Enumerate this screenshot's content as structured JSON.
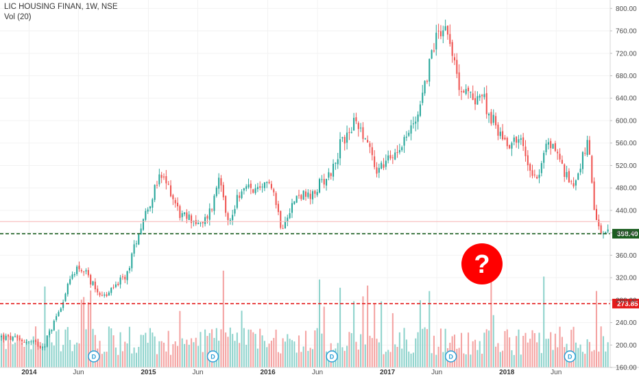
{
  "header": {
    "title": "LIC HOUSING FINAN, 1W, NSE",
    "volume_label": "Vol (20)"
  },
  "colors": {
    "up": "#26a69a",
    "down": "#ef5350",
    "vol_up": "#8ed3cc",
    "vol_down": "#f4a3a2",
    "support_line": "#1b5e20",
    "volume_line": "#e31b1b",
    "pivot_line": "#f8b4b4",
    "question_fill": "#ff0000",
    "marker_border": "#2a9fd6",
    "grid": "#f2f2f2"
  },
  "price_tags": {
    "support": "398.40",
    "volume_level": "273.85"
  },
  "question_mark": "?",
  "dividend_marker": "D",
  "chart_data": {
    "type": "candlestick",
    "title": "LIC HOUSING FINAN, 1W, NSE",
    "ylim": [
      143,
      815
    ],
    "y_ticks": [
      "160.00",
      "200.00",
      "240.00",
      "280.00",
      "320.00",
      "360.00",
      "400.00",
      "440.00",
      "480.00",
      "520.00",
      "560.00",
      "600.00",
      "640.00",
      "680.00",
      "720.00",
      "760.00",
      "800.00"
    ],
    "x_ticks": [
      "2014",
      "Jun",
      "2015",
      "Jun",
      "2016",
      "Jun",
      "2017",
      "Jun",
      "2018",
      "Jun"
    ],
    "x_ticks_major": [
      "2014",
      "2015",
      "2016",
      "2017",
      "2018"
    ],
    "grid": true,
    "price_path": [
      [
        "2013-10-04",
        215
      ],
      [
        "2013-11-22",
        210
      ],
      [
        "2014-01-03",
        205
      ],
      [
        "2014-02-14",
        198
      ],
      [
        "2014-03-14",
        235
      ],
      [
        "2014-04-18",
        285
      ],
      [
        "2014-05-16",
        330
      ],
      [
        "2014-05-30",
        340
      ],
      [
        "2014-06-20",
        330
      ],
      [
        "2014-07-25",
        300
      ],
      [
        "2014-08-22",
        285
      ],
      [
        "2014-09-26",
        310
      ],
      [
        "2014-10-24",
        320
      ],
      [
        "2014-11-21",
        380
      ],
      [
        "2014-12-12",
        420
      ],
      [
        "2015-01-16",
        470
      ],
      [
        "2015-02-06",
        500
      ],
      [
        "2015-03-06",
        480
      ],
      [
        "2015-04-10",
        430
      ],
      [
        "2015-05-15",
        425
      ],
      [
        "2015-06-12",
        410
      ],
      [
        "2015-07-17",
        450
      ],
      [
        "2015-08-07",
        510
      ],
      [
        "2015-09-04",
        410
      ],
      [
        "2015-10-02",
        470
      ],
      [
        "2015-11-06",
        480
      ],
      [
        "2015-12-11",
        470
      ],
      [
        "2016-01-08",
        500
      ],
      [
        "2016-02-12",
        410
      ],
      [
        "2016-03-04",
        440
      ],
      [
        "2016-04-08",
        470
      ],
      [
        "2016-05-13",
        460
      ],
      [
        "2016-06-10",
        490
      ],
      [
        "2016-07-15",
        510
      ],
      [
        "2016-08-12",
        560
      ],
      [
        "2016-09-16",
        590
      ],
      [
        "2016-09-30",
        600
      ],
      [
        "2016-11-11",
        550
      ],
      [
        "2016-11-25",
        510
      ],
      [
        "2017-01-06",
        530
      ],
      [
        "2017-02-10",
        560
      ],
      [
        "2017-03-10",
        580
      ],
      [
        "2017-04-07",
        620
      ],
      [
        "2017-05-05",
        690
      ],
      [
        "2017-06-02",
        760
      ],
      [
        "2017-06-23",
        770
      ],
      [
        "2017-07-14",
        750
      ],
      [
        "2017-07-28",
        680
      ],
      [
        "2017-08-25",
        650
      ],
      [
        "2017-09-22",
        640
      ],
      [
        "2017-10-13",
        650
      ],
      [
        "2017-11-10",
        610
      ],
      [
        "2017-12-08",
        580
      ],
      [
        "2018-01-05",
        560
      ],
      [
        "2018-02-09",
        570
      ],
      [
        "2018-03-09",
        520
      ],
      [
        "2018-04-06",
        500
      ],
      [
        "2018-05-04",
        560
      ],
      [
        "2018-06-01",
        550
      ],
      [
        "2018-06-29",
        500
      ],
      [
        "2018-07-27",
        490
      ],
      [
        "2018-08-24",
        540
      ],
      [
        "2018-09-07",
        560
      ],
      [
        "2018-09-21",
        460
      ],
      [
        "2018-10-05",
        410
      ],
      [
        "2018-10-19",
        400
      ],
      [
        "2018-11-02",
        398
      ]
    ],
    "all_time_high": 795,
    "last_close": 398.4,
    "support_level": 398.4,
    "volume_level": 273.85,
    "pivot_level": 420,
    "dividend_dates": [
      "2014-07-18",
      "2015-07-17",
      "2016-07-15",
      "2017-07-14",
      "2018-07-13"
    ]
  }
}
